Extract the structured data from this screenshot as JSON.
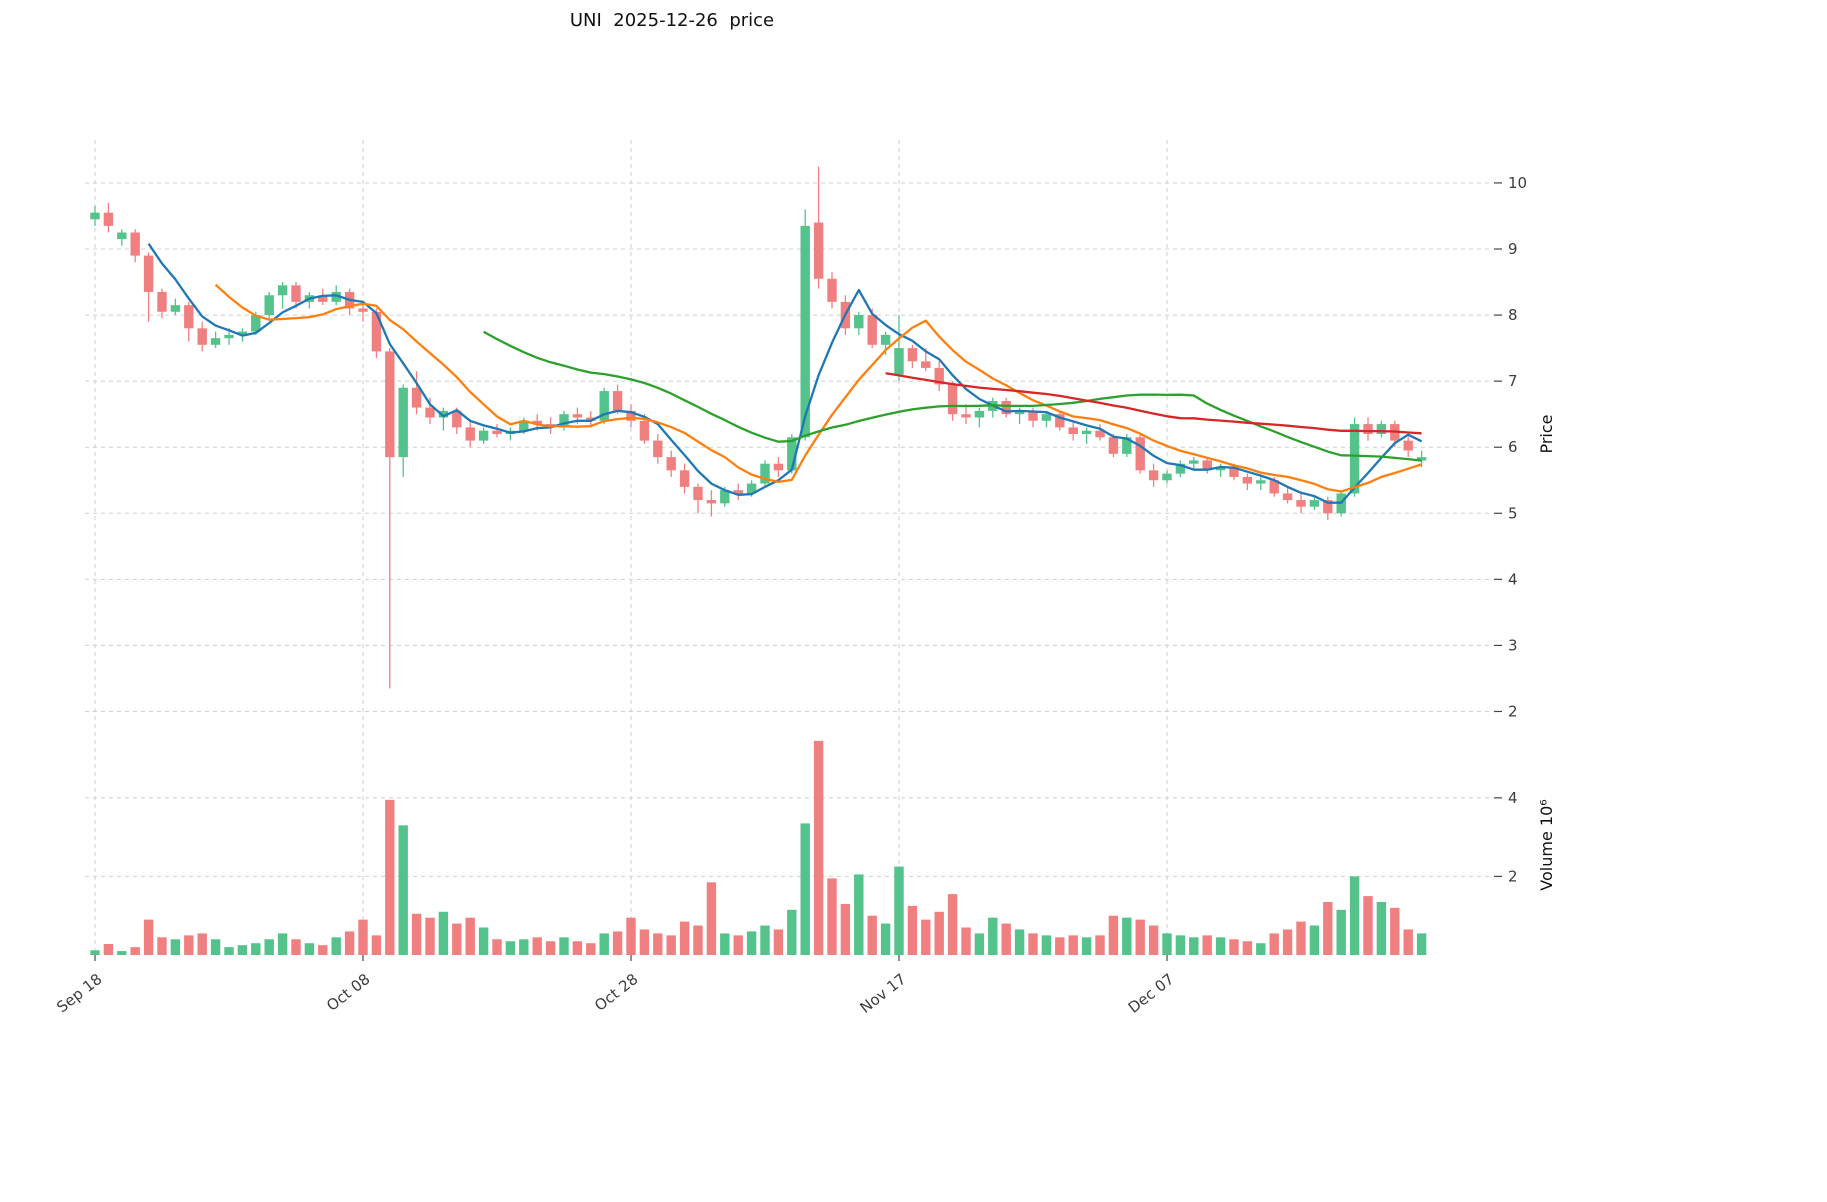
{
  "title": "UNI  2025-12-26  price",
  "colors": {
    "up": "#53c28b",
    "down": "#f08080",
    "ma5": "#1f77b4",
    "ma10": "#ff7f0e",
    "ma30": "#2ca02c",
    "ma60": "#d62728",
    "grid": "#cfcfcf",
    "tick_text": "#3d3d3d"
  },
  "chart_data": {
    "type": "candlestick",
    "title": "UNI  2025-12-26  price",
    "legend": "none",
    "grid": "dashed",
    "x_axis": {
      "tick_labels": [
        "Sep 18",
        "Oct 08",
        "Oct 28",
        "Nov 17",
        "Dec 07"
      ],
      "tick_indices": [
        0,
        20,
        40,
        60,
        80
      ]
    },
    "price_axis": {
      "label": "Price",
      "side": "right",
      "ticks": [
        2,
        3,
        4,
        5,
        6,
        7,
        8,
        9,
        10
      ],
      "range": [
        1.75,
        10.65
      ]
    },
    "volume_axis": {
      "label": "Volume  10⁶",
      "side": "right",
      "ticks": [
        2,
        4
      ],
      "range": [
        0,
        5.6
      ],
      "unit": 1000000
    },
    "moving_averages": [
      {
        "window": 5,
        "color_key": "ma5"
      },
      {
        "window": 10,
        "color_key": "ma10"
      },
      {
        "window": 30,
        "color_key": "ma30"
      },
      {
        "window": 60,
        "color_key": "ma60"
      }
    ],
    "candles_note": "each row = [date, open, high, low, close, volume_millions]",
    "candles": [
      [
        "2025-09-18",
        9.45,
        9.65,
        9.35,
        9.55,
        0.12
      ],
      [
        "2025-09-19",
        9.55,
        9.7,
        9.25,
        9.35,
        0.28
      ],
      [
        "2025-09-20",
        9.15,
        9.3,
        9.05,
        9.25,
        0.1
      ],
      [
        "2025-09-21",
        9.25,
        9.3,
        8.8,
        8.9,
        0.2
      ],
      [
        "2025-09-22",
        8.9,
        8.95,
        7.9,
        8.35,
        0.9
      ],
      [
        "2025-09-23",
        8.35,
        8.4,
        7.95,
        8.05,
        0.45
      ],
      [
        "2025-09-24",
        8.05,
        8.25,
        8.0,
        8.15,
        0.4
      ],
      [
        "2025-09-25",
        8.15,
        8.2,
        7.6,
        7.8,
        0.5
      ],
      [
        "2025-09-26",
        7.8,
        7.9,
        7.45,
        7.55,
        0.55
      ],
      [
        "2025-09-27",
        7.55,
        7.75,
        7.5,
        7.65,
        0.4
      ],
      [
        "2025-09-28",
        7.65,
        7.8,
        7.55,
        7.7,
        0.2
      ],
      [
        "2025-09-29",
        7.7,
        7.8,
        7.6,
        7.75,
        0.25
      ],
      [
        "2025-09-30",
        7.75,
        8.05,
        7.7,
        8.0,
        0.3
      ],
      [
        "2025-10-01",
        8.0,
        8.35,
        7.95,
        8.3,
        0.4
      ],
      [
        "2025-10-02",
        8.3,
        8.5,
        8.1,
        8.45,
        0.55
      ],
      [
        "2025-10-03",
        8.45,
        8.5,
        8.1,
        8.2,
        0.4
      ],
      [
        "2025-10-04",
        8.2,
        8.35,
        8.1,
        8.3,
        0.3
      ],
      [
        "2025-10-05",
        8.3,
        8.4,
        8.15,
        8.2,
        0.25
      ],
      [
        "2025-10-06",
        8.2,
        8.45,
        8.15,
        8.35,
        0.45
      ],
      [
        "2025-10-07",
        8.35,
        8.4,
        8.0,
        8.1,
        0.6
      ],
      [
        "2025-10-08",
        8.1,
        8.2,
        7.9,
        8.05,
        0.9
      ],
      [
        "2025-10-09",
        8.05,
        8.1,
        7.35,
        7.45,
        0.5
      ],
      [
        "2025-10-10",
        7.45,
        7.5,
        2.35,
        5.85,
        3.95
      ],
      [
        "2025-10-11",
        5.85,
        6.95,
        5.55,
        6.9,
        3.3
      ],
      [
        "2025-10-12",
        6.9,
        7.15,
        6.5,
        6.6,
        1.05
      ],
      [
        "2025-10-13",
        6.6,
        6.75,
        6.35,
        6.45,
        0.95
      ],
      [
        "2025-10-14",
        6.45,
        6.6,
        6.25,
        6.55,
        1.1
      ],
      [
        "2025-10-15",
        6.55,
        6.6,
        6.2,
        6.3,
        0.8
      ],
      [
        "2025-10-16",
        6.3,
        6.4,
        6.0,
        6.1,
        0.95
      ],
      [
        "2025-10-17",
        6.1,
        6.3,
        6.05,
        6.25,
        0.7
      ],
      [
        "2025-10-18",
        6.25,
        6.35,
        6.15,
        6.2,
        0.4
      ],
      [
        "2025-10-19",
        6.2,
        6.3,
        6.1,
        6.25,
        0.35
      ],
      [
        "2025-10-20",
        6.25,
        6.45,
        6.2,
        6.4,
        0.4
      ],
      [
        "2025-10-21",
        6.4,
        6.5,
        6.25,
        6.35,
        0.45
      ],
      [
        "2025-10-22",
        6.35,
        6.45,
        6.2,
        6.3,
        0.35
      ],
      [
        "2025-10-23",
        6.3,
        6.55,
        6.25,
        6.5,
        0.45
      ],
      [
        "2025-10-24",
        6.5,
        6.6,
        6.35,
        6.45,
        0.35
      ],
      [
        "2025-10-25",
        6.45,
        6.55,
        6.3,
        6.4,
        0.3
      ],
      [
        "2025-10-26",
        6.4,
        6.9,
        6.35,
        6.85,
        0.55
      ],
      [
        "2025-10-27",
        6.85,
        6.95,
        6.5,
        6.55,
        0.6
      ],
      [
        "2025-10-28",
        6.55,
        6.65,
        6.3,
        6.4,
        0.95
      ],
      [
        "2025-10-29",
        6.4,
        6.5,
        6.05,
        6.1,
        0.65
      ],
      [
        "2025-10-30",
        6.1,
        6.2,
        5.75,
        5.85,
        0.55
      ],
      [
        "2025-10-31",
        5.85,
        5.95,
        5.55,
        5.65,
        0.5
      ],
      [
        "2025-11-01",
        5.65,
        5.75,
        5.3,
        5.4,
        0.85
      ],
      [
        "2025-11-02",
        5.4,
        5.45,
        5.0,
        5.2,
        0.75
      ],
      [
        "2025-11-03",
        5.2,
        5.35,
        4.95,
        5.15,
        1.85
      ],
      [
        "2025-11-04",
        5.15,
        5.4,
        5.1,
        5.35,
        0.55
      ],
      [
        "2025-11-05",
        5.35,
        5.45,
        5.2,
        5.3,
        0.5
      ],
      [
        "2025-11-06",
        5.3,
        5.5,
        5.25,
        5.45,
        0.6
      ],
      [
        "2025-11-07",
        5.45,
        5.8,
        5.4,
        5.75,
        0.75
      ],
      [
        "2025-11-08",
        5.75,
        5.85,
        5.55,
        5.65,
        0.65
      ],
      [
        "2025-11-09",
        5.65,
        6.2,
        5.6,
        6.15,
        1.15
      ],
      [
        "2025-11-10",
        6.15,
        9.6,
        6.1,
        9.35,
        3.35
      ],
      [
        "2025-11-11",
        9.4,
        10.25,
        8.4,
        8.55,
        5.45
      ],
      [
        "2025-11-12",
        8.55,
        8.65,
        8.1,
        8.2,
        1.95
      ],
      [
        "2025-11-13",
        8.2,
        8.3,
        7.7,
        7.8,
        1.3
      ],
      [
        "2025-11-14",
        7.8,
        8.05,
        7.7,
        8.0,
        2.05
      ],
      [
        "2025-11-15",
        8.0,
        8.1,
        7.5,
        7.55,
        1.0
      ],
      [
        "2025-11-16",
        7.55,
        7.75,
        7.4,
        7.7,
        0.8
      ],
      [
        "2025-11-17",
        7.1,
        8.0,
        7.0,
        7.5,
        2.25
      ],
      [
        "2025-11-18",
        7.5,
        7.55,
        7.2,
        7.3,
        1.25
      ],
      [
        "2025-11-19",
        7.3,
        7.5,
        7.15,
        7.2,
        0.9
      ],
      [
        "2025-11-20",
        7.2,
        7.3,
        6.85,
        6.95,
        1.1
      ],
      [
        "2025-11-21",
        6.95,
        7.0,
        6.4,
        6.5,
        1.55
      ],
      [
        "2025-11-22",
        6.5,
        6.65,
        6.35,
        6.45,
        0.7
      ],
      [
        "2025-11-23",
        6.45,
        6.6,
        6.3,
        6.55,
        0.55
      ],
      [
        "2025-11-24",
        6.55,
        6.75,
        6.45,
        6.7,
        0.95
      ],
      [
        "2025-11-25",
        6.7,
        6.75,
        6.45,
        6.5,
        0.8
      ],
      [
        "2025-11-26",
        6.5,
        6.6,
        6.35,
        6.55,
        0.65
      ],
      [
        "2025-11-27",
        6.55,
        6.6,
        6.3,
        6.4,
        0.55
      ],
      [
        "2025-11-28",
        6.4,
        6.55,
        6.3,
        6.5,
        0.5
      ],
      [
        "2025-11-29",
        6.5,
        6.55,
        6.25,
        6.3,
        0.45
      ],
      [
        "2025-11-30",
        6.3,
        6.4,
        6.1,
        6.2,
        0.5
      ],
      [
        "2025-12-01",
        6.2,
        6.3,
        6.05,
        6.25,
        0.45
      ],
      [
        "2025-12-02",
        6.25,
        6.35,
        6.1,
        6.15,
        0.5
      ],
      [
        "2025-12-03",
        6.15,
        6.2,
        5.85,
        5.9,
        1.0
      ],
      [
        "2025-12-04",
        5.9,
        6.2,
        5.85,
        6.15,
        0.95
      ],
      [
        "2025-12-05",
        6.15,
        6.2,
        5.6,
        5.65,
        0.9
      ],
      [
        "2025-12-06",
        5.65,
        5.75,
        5.4,
        5.5,
        0.75
      ],
      [
        "2025-12-07",
        5.5,
        5.65,
        5.45,
        5.6,
        0.55
      ],
      [
        "2025-12-08",
        5.6,
        5.8,
        5.55,
        5.75,
        0.5
      ],
      [
        "2025-12-09",
        5.75,
        5.85,
        5.65,
        5.8,
        0.45
      ],
      [
        "2025-12-10",
        5.8,
        5.85,
        5.6,
        5.65,
        0.5
      ],
      [
        "2025-12-11",
        5.65,
        5.75,
        5.55,
        5.7,
        0.45
      ],
      [
        "2025-12-12",
        5.7,
        5.75,
        5.5,
        5.55,
        0.4
      ],
      [
        "2025-12-13",
        5.55,
        5.6,
        5.35,
        5.45,
        0.35
      ],
      [
        "2025-12-14",
        5.45,
        5.55,
        5.35,
        5.5,
        0.3
      ],
      [
        "2025-12-15",
        5.5,
        5.55,
        5.25,
        5.3,
        0.55
      ],
      [
        "2025-12-16",
        5.3,
        5.4,
        5.15,
        5.2,
        0.65
      ],
      [
        "2025-12-17",
        5.2,
        5.3,
        5.0,
        5.1,
        0.85
      ],
      [
        "2025-12-18",
        5.1,
        5.25,
        5.05,
        5.2,
        0.75
      ],
      [
        "2025-12-19",
        5.2,
        5.25,
        4.9,
        5.0,
        1.35
      ],
      [
        "2025-12-20",
        5.0,
        5.35,
        4.95,
        5.3,
        1.15
      ],
      [
        "2025-12-21",
        5.3,
        6.45,
        5.25,
        6.35,
        2.0
      ],
      [
        "2025-12-22",
        6.35,
        6.45,
        6.1,
        6.2,
        1.5
      ],
      [
        "2025-12-23",
        6.2,
        6.4,
        6.15,
        6.35,
        1.35
      ],
      [
        "2025-12-24",
        6.35,
        6.4,
        6.0,
        6.1,
        1.2
      ],
      [
        "2025-12-25",
        6.1,
        6.15,
        5.85,
        5.95,
        0.65
      ],
      [
        "2025-12-26",
        5.8,
        5.95,
        5.7,
        5.85,
        0.55
      ]
    ]
  }
}
